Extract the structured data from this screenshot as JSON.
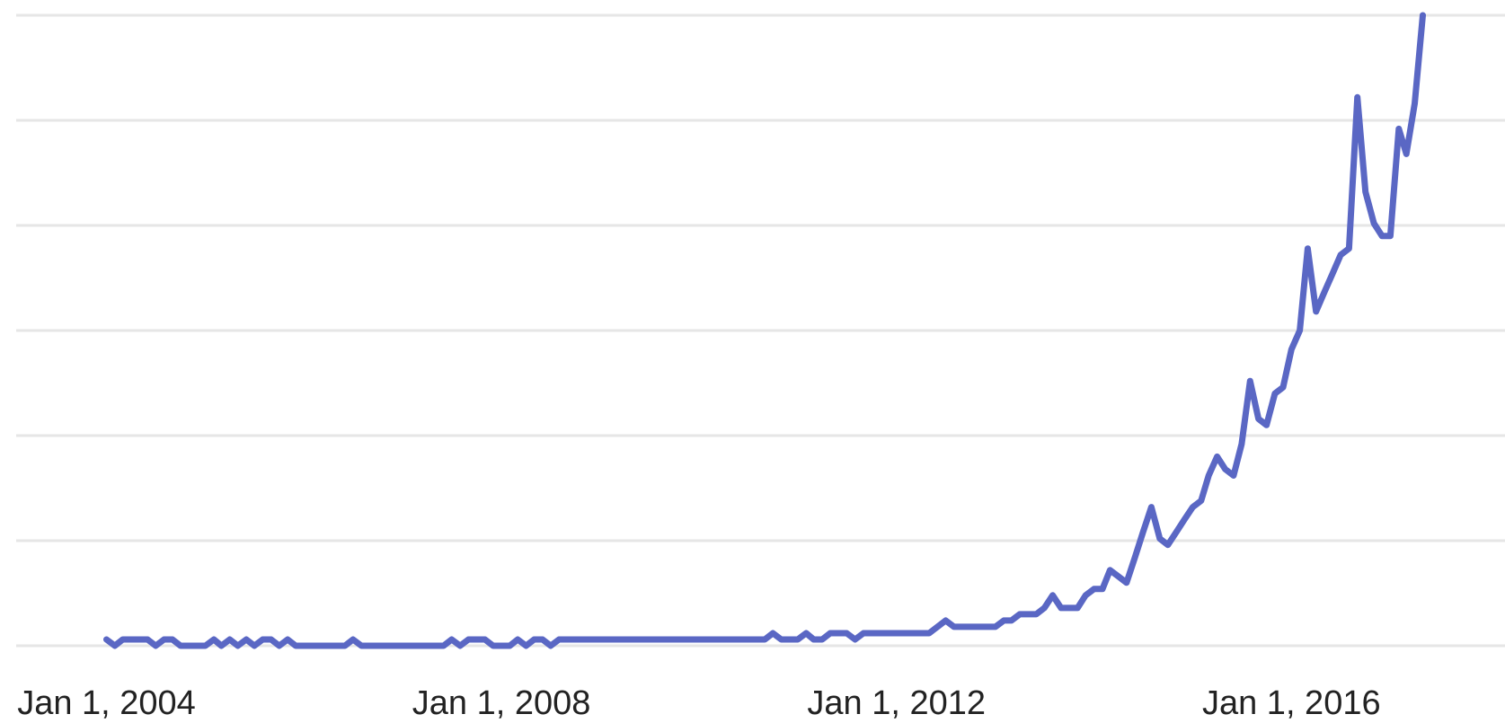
{
  "chart_data": {
    "type": "line",
    "title": "",
    "xlabel": "",
    "ylabel": "",
    "x_ticks": [
      "Jan 1, 2004",
      "Jan 1, 2008",
      "Jan 1, 2012",
      "Jan 1, 2016"
    ],
    "x_tick_values": [
      "2004-01-01",
      "2008-01-01",
      "2012-01-01",
      "2016-01-01"
    ],
    "xlim": [
      "2003-02-01",
      "2018-03-01"
    ],
    "ylim": [
      0,
      100
    ],
    "y_gridlines": [
      0,
      16.67,
      33.33,
      50,
      66.67,
      83.33,
      100
    ],
    "y_tick_labels_visible": false,
    "grid": true,
    "legend": "none",
    "colors": {
      "series": "#5a67c4",
      "grid": "#e6e6e6",
      "text": "#222222"
    },
    "series": [
      {
        "values": [
          [
            "2004-01-01",
            1
          ],
          [
            "2004-02-01",
            0
          ],
          [
            "2004-03-01",
            1
          ],
          [
            "2004-04-01",
            1
          ],
          [
            "2004-06-01",
            1
          ],
          [
            "2004-07-01",
            0
          ],
          [
            "2004-08-01",
            1
          ],
          [
            "2004-09-01",
            1
          ],
          [
            "2004-10-01",
            0
          ],
          [
            "2004-11-01",
            0
          ],
          [
            "2005-01-01",
            0
          ],
          [
            "2005-02-01",
            1
          ],
          [
            "2005-03-01",
            0
          ],
          [
            "2005-04-01",
            1
          ],
          [
            "2005-05-01",
            0
          ],
          [
            "2005-06-01",
            1
          ],
          [
            "2005-07-01",
            0
          ],
          [
            "2005-08-01",
            1
          ],
          [
            "2005-09-01",
            1
          ],
          [
            "2005-10-01",
            0
          ],
          [
            "2005-11-01",
            1
          ],
          [
            "2005-12-01",
            0
          ],
          [
            "2006-06-01",
            0
          ],
          [
            "2006-07-01",
            1
          ],
          [
            "2006-08-01",
            0
          ],
          [
            "2007-06-01",
            0
          ],
          [
            "2007-07-01",
            1
          ],
          [
            "2007-08-01",
            0
          ],
          [
            "2007-09-01",
            1
          ],
          [
            "2007-11-01",
            1
          ],
          [
            "2007-12-01",
            0
          ],
          [
            "2008-02-01",
            0
          ],
          [
            "2008-03-01",
            1
          ],
          [
            "2008-04-01",
            0
          ],
          [
            "2008-05-01",
            1
          ],
          [
            "2008-06-01",
            1
          ],
          [
            "2008-07-01",
            0
          ],
          [
            "2008-08-01",
            1
          ],
          [
            "2009-01-01",
            1
          ],
          [
            "2010-01-01",
            1
          ],
          [
            "2010-09-01",
            1
          ],
          [
            "2010-10-01",
            2
          ],
          [
            "2010-11-01",
            1
          ],
          [
            "2011-01-01",
            1
          ],
          [
            "2011-02-01",
            2
          ],
          [
            "2011-03-01",
            1
          ],
          [
            "2011-04-01",
            1
          ],
          [
            "2011-05-01",
            2
          ],
          [
            "2011-06-01",
            2
          ],
          [
            "2011-07-01",
            2
          ],
          [
            "2011-08-01",
            1
          ],
          [
            "2011-09-01",
            2
          ],
          [
            "2012-01-01",
            2
          ],
          [
            "2012-05-01",
            2
          ],
          [
            "2012-06-01",
            3
          ],
          [
            "2012-07-01",
            4
          ],
          [
            "2012-08-01",
            3
          ],
          [
            "2012-09-01",
            3
          ],
          [
            "2012-10-01",
            3
          ],
          [
            "2013-01-01",
            3
          ],
          [
            "2013-02-01",
            4
          ],
          [
            "2013-03-01",
            4
          ],
          [
            "2013-04-01",
            5
          ],
          [
            "2013-05-01",
            5
          ],
          [
            "2013-06-01",
            5
          ],
          [
            "2013-07-01",
            6
          ],
          [
            "2013-08-01",
            8
          ],
          [
            "2013-09-01",
            6
          ],
          [
            "2013-10-01",
            6
          ],
          [
            "2013-11-01",
            6
          ],
          [
            "2013-12-01",
            8
          ],
          [
            "2014-01-01",
            9
          ],
          [
            "2014-02-01",
            9
          ],
          [
            "2014-03-01",
            12
          ],
          [
            "2014-04-01",
            11
          ],
          [
            "2014-05-01",
            10
          ],
          [
            "2014-06-01",
            14
          ],
          [
            "2014-07-01",
            18
          ],
          [
            "2014-08-01",
            22
          ],
          [
            "2014-09-01",
            17
          ],
          [
            "2014-10-01",
            16
          ],
          [
            "2014-11-01",
            18
          ],
          [
            "2014-12-01",
            20
          ],
          [
            "2015-01-01",
            22
          ],
          [
            "2015-02-01",
            23
          ],
          [
            "2015-03-01",
            27
          ],
          [
            "2015-04-01",
            30
          ],
          [
            "2015-05-01",
            28
          ],
          [
            "2015-06-01",
            27
          ],
          [
            "2015-07-01",
            32
          ],
          [
            "2015-08-01",
            42
          ],
          [
            "2015-09-01",
            36
          ],
          [
            "2015-10-01",
            35
          ],
          [
            "2015-11-01",
            40
          ],
          [
            "2015-12-01",
            41
          ],
          [
            "2016-01-01",
            47
          ],
          [
            "2016-02-01",
            50
          ],
          [
            "2016-03-01",
            63
          ],
          [
            "2016-04-01",
            53
          ],
          [
            "2016-05-01",
            56
          ],
          [
            "2016-06-01",
            59
          ],
          [
            "2016-07-01",
            62
          ],
          [
            "2016-08-01",
            63
          ],
          [
            "2016-09-01",
            87
          ],
          [
            "2016-10-01",
            72
          ],
          [
            "2016-11-01",
            67
          ],
          [
            "2016-12-01",
            65
          ],
          [
            "2017-01-01",
            65
          ],
          [
            "2017-02-01",
            82
          ],
          [
            "2017-03-01",
            78
          ],
          [
            "2017-04-01",
            86
          ],
          [
            "2017-05-01",
            100
          ]
        ]
      }
    ]
  }
}
